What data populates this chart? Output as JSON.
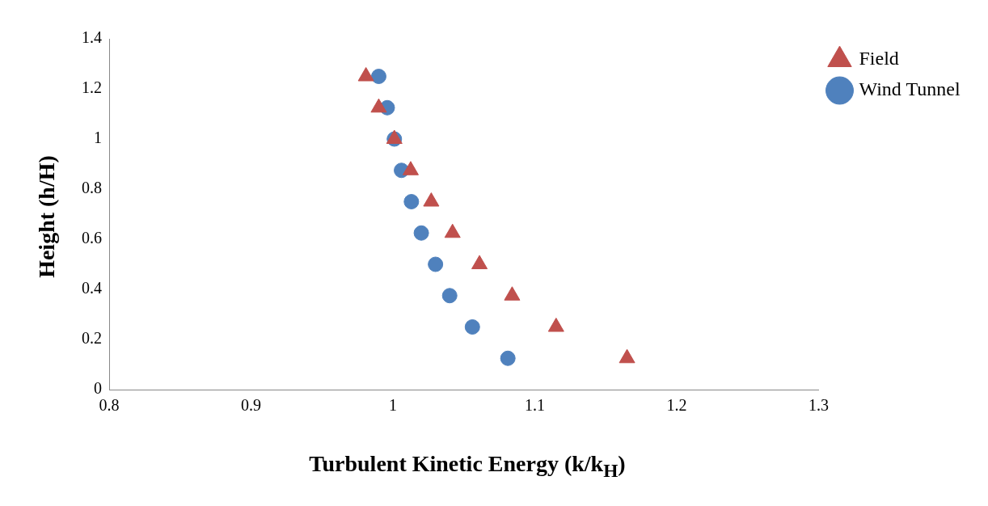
{
  "chart_data": {
    "type": "scatter",
    "xlabel": "Turbulent Kinetic Energy (k/k$_{H}$)",
    "ylabel": "Height (h/H)",
    "xlim": [
      0.8,
      1.3
    ],
    "xticks": [
      0.8,
      0.9,
      1,
      1.1,
      1.2,
      1.3
    ],
    "ylim": [
      0,
      1.4
    ],
    "yticks": [
      0,
      0.2,
      0.4,
      0.6,
      0.8,
      1,
      1.2,
      1.4
    ],
    "grid": false,
    "legend": "top right",
    "series": [
      {
        "name": "Wind Tunnel",
        "color": "#4f81bd",
        "marker": "circle",
        "x": [
          0.99,
          0.996,
          1.001,
          1.006,
          1.013,
          1.02,
          1.03,
          1.04,
          1.056,
          1.081
        ],
        "values": [
          1.25,
          1.125,
          1,
          0.875,
          0.75,
          0.625,
          0.5,
          0.375,
          0.25,
          0.125
        ]
      },
      {
        "name": "Field",
        "color": "#c0504d",
        "marker": "triangle",
        "x": [
          0.981,
          0.99,
          1.001,
          1.0125,
          1.027,
          1.042,
          1.061,
          1.084,
          1.115,
          1.165
        ],
        "values": [
          1.25,
          1.125,
          1,
          0.875,
          0.75,
          0.625,
          0.5,
          0.375,
          0.25,
          0.125
        ]
      }
    ]
  }
}
